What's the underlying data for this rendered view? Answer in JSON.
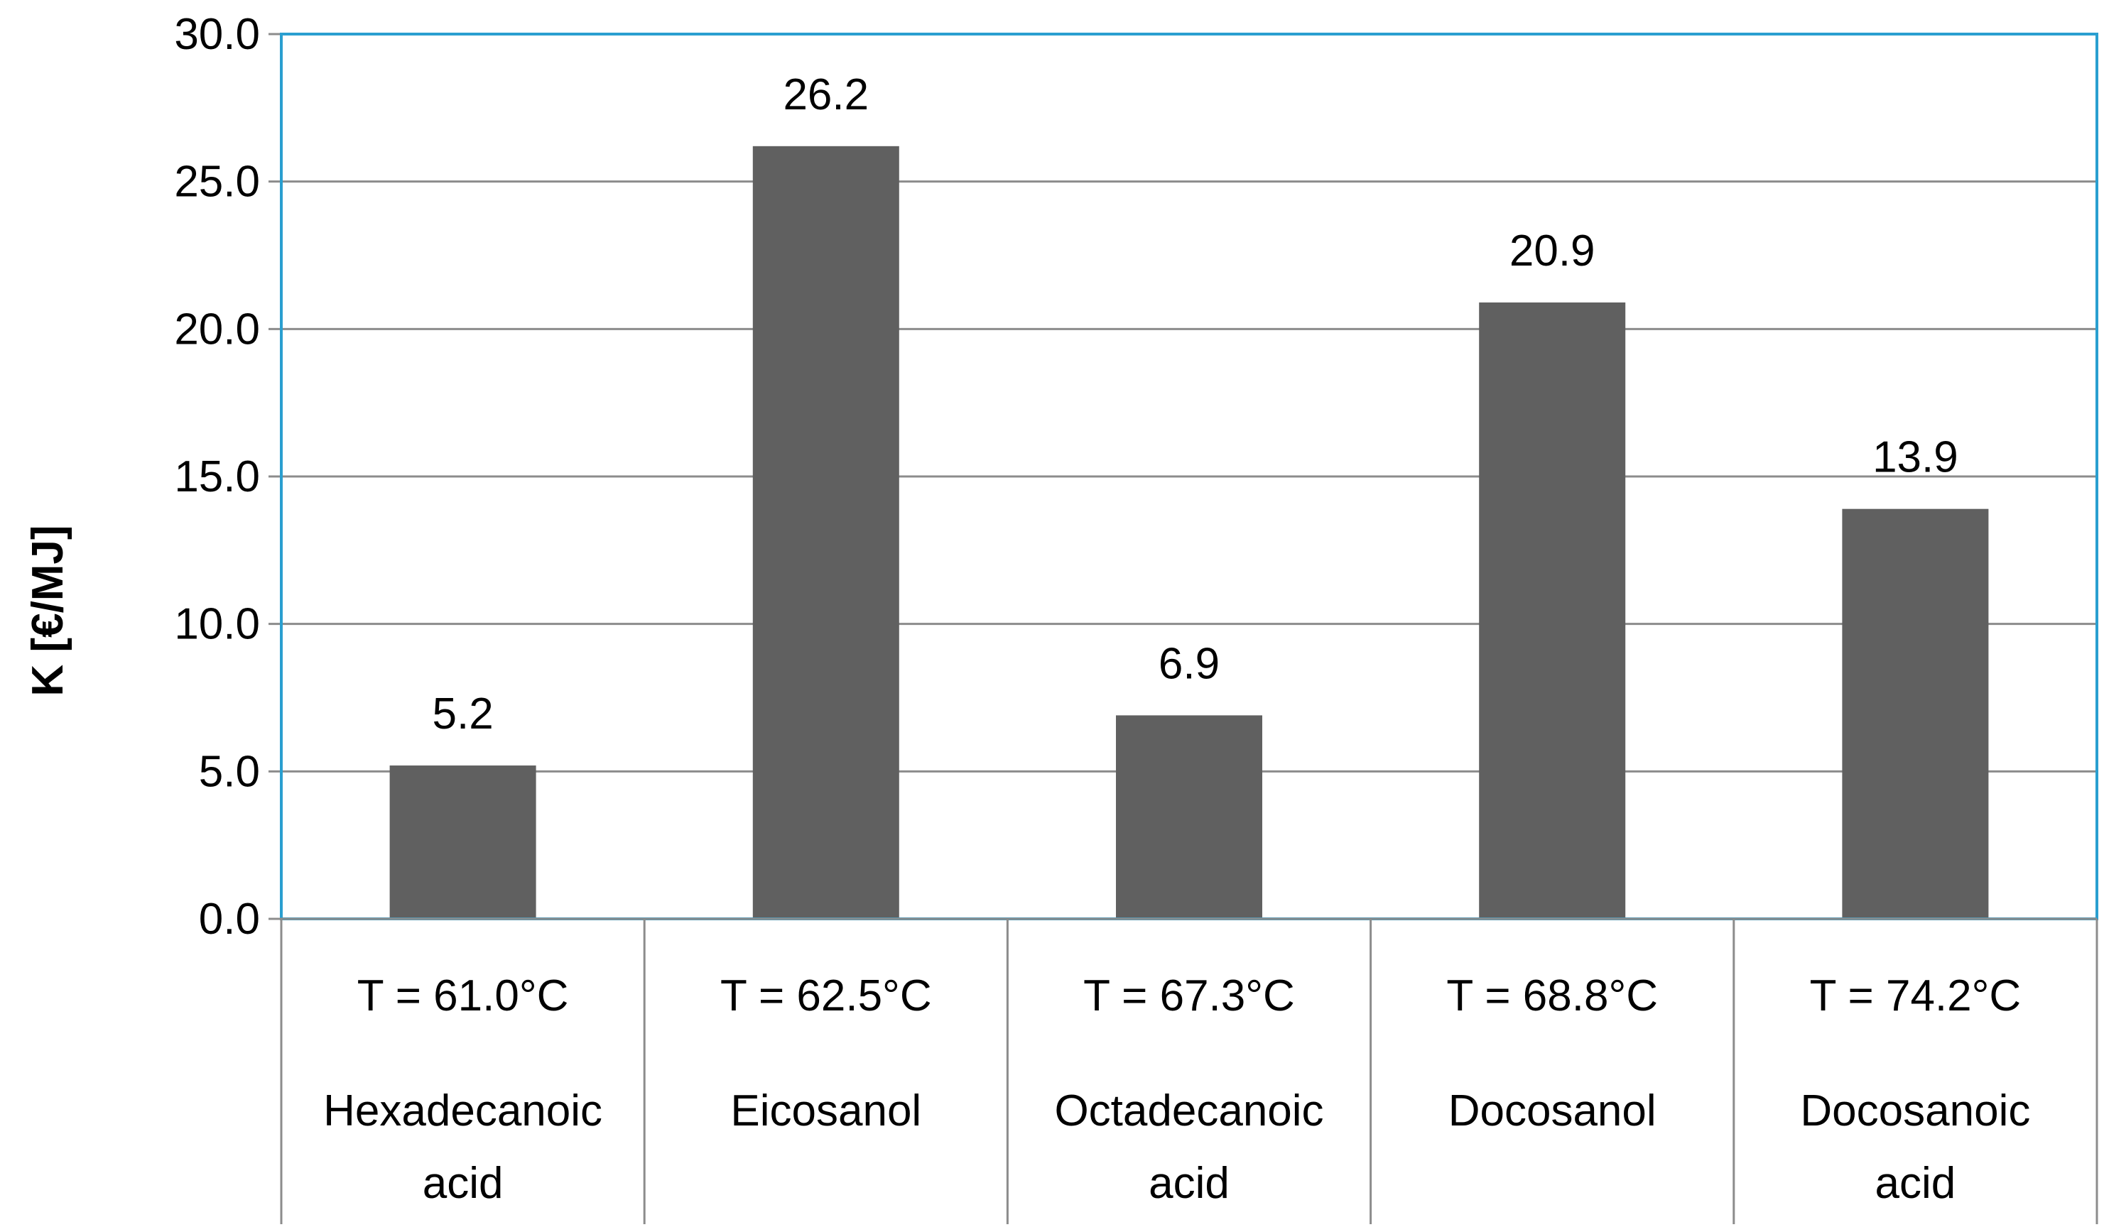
{
  "chart_data": {
    "type": "bar",
    "title": "",
    "xlabel": "",
    "ylabel": "K [€/MJ]",
    "ylim": [
      0,
      30
    ],
    "yticks": [
      "0.0",
      "5.0",
      "10.0",
      "15.0",
      "20.0",
      "25.0",
      "30.0"
    ],
    "grid": true,
    "bar_color": "#606060",
    "plot_border_color": "#2A9FD0",
    "categories": [
      {
        "temperature": "T = 61.0°C",
        "name_lines": [
          "Hexadecanoic",
          "acid"
        ]
      },
      {
        "temperature": "T = 62.5°C",
        "name_lines": [
          "Eicosanol"
        ]
      },
      {
        "temperature": "T = 67.3°C",
        "name_lines": [
          "Octadecanoic",
          "acid"
        ]
      },
      {
        "temperature": "T = 68.8°C",
        "name_lines": [
          "Docosanol"
        ]
      },
      {
        "temperature": "T = 74.2°C",
        "name_lines": [
          "Docosanoic",
          "acid"
        ]
      }
    ],
    "values": [
      5.2,
      26.2,
      6.9,
      20.9,
      13.9
    ],
    "data_labels": [
      "5.2",
      "26.2",
      "6.9",
      "20.9",
      "13.9"
    ]
  }
}
